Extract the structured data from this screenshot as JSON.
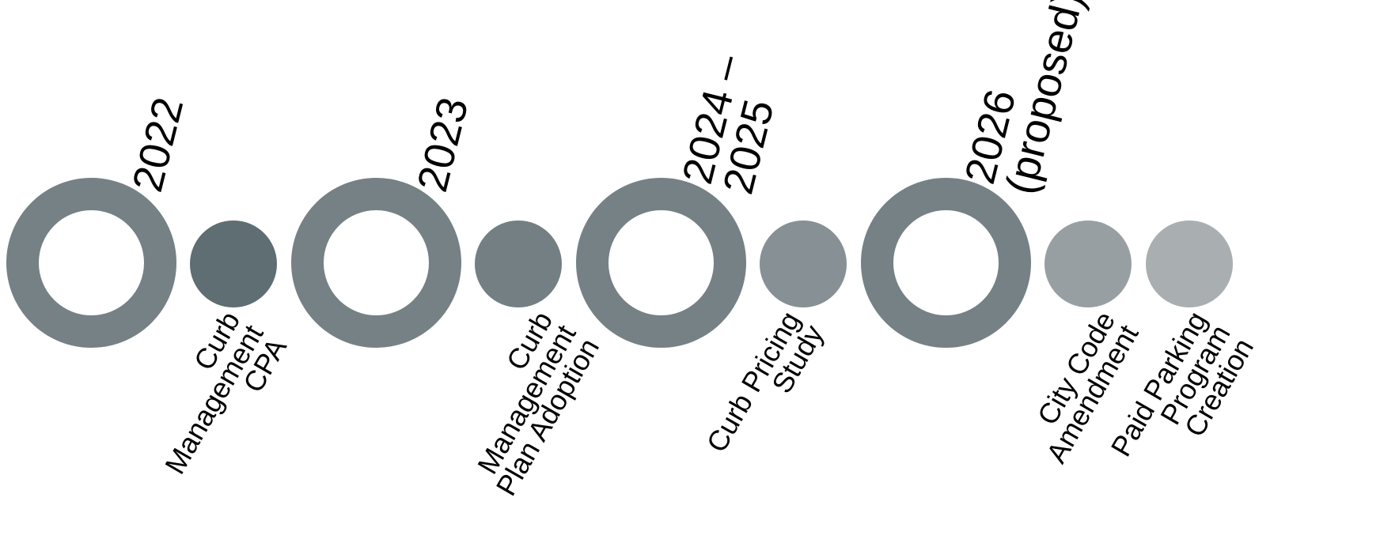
{
  "colors": {
    "ring": "#768186",
    "dot_cpa": "#5e6e73",
    "dot_plan": "#737f83",
    "dot_pricing": "#879094",
    "dot_code": "#989fa2",
    "dot_parking": "#a9afb0"
  },
  "milestones": [
    {
      "year_lines": [
        "2022"
      ],
      "items": [
        {
          "lines": [
            "Curb",
            "Management",
            "CPA"
          ]
        }
      ]
    },
    {
      "year_lines": [
        "2023"
      ],
      "items": [
        {
          "lines": [
            "Curb",
            "Management",
            "Plan Adoption"
          ]
        }
      ]
    },
    {
      "year_lines": [
        "2024 –",
        "2025"
      ],
      "items": [
        {
          "lines": [
            "Curb Pricing",
            "Study"
          ]
        }
      ]
    },
    {
      "year_lines": [
        "2026",
        "(proposed)"
      ],
      "items": [
        {
          "lines": [
            "City Code",
            "Amendment"
          ]
        },
        {
          "lines": [
            "Paid Parking",
            "Program",
            "Creation"
          ]
        }
      ]
    }
  ]
}
